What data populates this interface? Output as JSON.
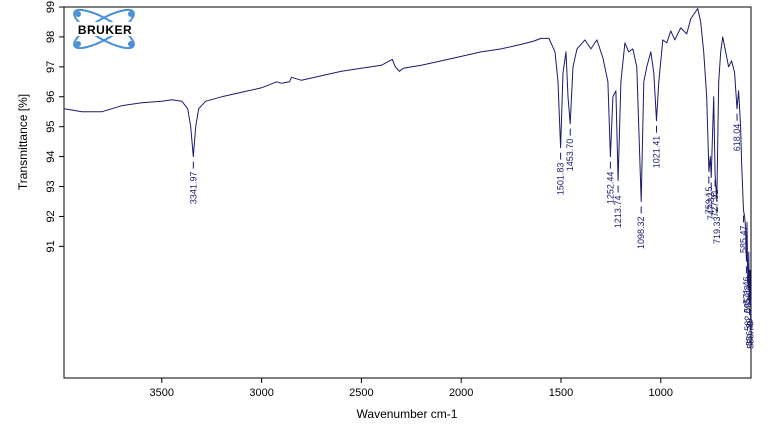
{
  "logo": {
    "text": "BRUKER"
  },
  "colors": {
    "spectrum": "#1a1a6e",
    "axis": "#000000",
    "logo_orbit": "#4a90d9"
  },
  "chart_data": {
    "type": "line",
    "xlabel": "Wavenumber cm-1",
    "ylabel": "Transmittance [%]",
    "x_reversed": true,
    "xlim": [
      3990,
      548
    ],
    "ylim": [
      86.6,
      99
    ],
    "x_ticks": [
      3500,
      3000,
      2500,
      2000,
      1500,
      1000
    ],
    "y_ticks": [
      91,
      92,
      93,
      94,
      95,
      96,
      97,
      98,
      99
    ],
    "grid": false,
    "series": [
      {
        "values": [
          [
            3990,
            95.6
          ],
          [
            3900,
            95.5
          ],
          [
            3800,
            95.5
          ],
          [
            3700,
            95.7
          ],
          [
            3600,
            95.8
          ],
          [
            3500,
            95.85
          ],
          [
            3450,
            95.9
          ],
          [
            3400,
            95.85
          ],
          [
            3370,
            95.6
          ],
          [
            3355,
            95.0
          ],
          [
            3342,
            94.0
          ],
          [
            3330,
            95.0
          ],
          [
            3315,
            95.6
          ],
          [
            3280,
            95.85
          ],
          [
            3200,
            96.0
          ],
          [
            3100,
            96.15
          ],
          [
            3000,
            96.3
          ],
          [
            2925,
            96.5
          ],
          [
            2900,
            96.45
          ],
          [
            2860,
            96.5
          ],
          [
            2850,
            96.65
          ],
          [
            2800,
            96.55
          ],
          [
            2700,
            96.7
          ],
          [
            2600,
            96.85
          ],
          [
            2500,
            96.95
          ],
          [
            2400,
            97.05
          ],
          [
            2360,
            97.2
          ],
          [
            2345,
            97.25
          ],
          [
            2330,
            97.0
          ],
          [
            2310,
            96.85
          ],
          [
            2290,
            96.95
          ],
          [
            2200,
            97.05
          ],
          [
            2100,
            97.2
          ],
          [
            2000,
            97.35
          ],
          [
            1900,
            97.5
          ],
          [
            1800,
            97.6
          ],
          [
            1700,
            97.75
          ],
          [
            1640,
            97.85
          ],
          [
            1620,
            97.9
          ],
          [
            1600,
            97.95
          ],
          [
            1560,
            97.95
          ],
          [
            1530,
            97.5
          ],
          [
            1515,
            96.5
          ],
          [
            1501.83,
            94.3
          ],
          [
            1490,
            96.8
          ],
          [
            1475,
            97.5
          ],
          [
            1465,
            96.0
          ],
          [
            1453.7,
            95.1
          ],
          [
            1440,
            97.0
          ],
          [
            1420,
            97.6
          ],
          [
            1380,
            97.9
          ],
          [
            1350,
            97.6
          ],
          [
            1320,
            97.9
          ],
          [
            1290,
            97.3
          ],
          [
            1265,
            96.5
          ],
          [
            1252.44,
            94.0
          ],
          [
            1240,
            96.0
          ],
          [
            1225,
            96.2
          ],
          [
            1213.74,
            93.2
          ],
          [
            1200,
            96.5
          ],
          [
            1180,
            97.8
          ],
          [
            1160,
            97.5
          ],
          [
            1140,
            97.6
          ],
          [
            1120,
            97.0
          ],
          [
            1098.32,
            92.5
          ],
          [
            1085,
            96.5
          ],
          [
            1070,
            97.0
          ],
          [
            1050,
            97.5
          ],
          [
            1035,
            96.8
          ],
          [
            1021.41,
            95.2
          ],
          [
            1010,
            96.5
          ],
          [
            990,
            97.9
          ],
          [
            970,
            97.8
          ],
          [
            950,
            98.2
          ],
          [
            930,
            97.9
          ],
          [
            900,
            98.3
          ],
          [
            870,
            98.1
          ],
          [
            850,
            98.6
          ],
          [
            830,
            98.8
          ],
          [
            815,
            98.95
          ],
          [
            800,
            98.5
          ],
          [
            785,
            97.5
          ],
          [
            770,
            96.0
          ],
          [
            759.15,
            93.5
          ],
          [
            752,
            94.0
          ],
          [
            747.32,
            93.3
          ],
          [
            735,
            96.0
          ],
          [
            727.91,
            93.4
          ],
          [
            719.33,
            92.5
          ],
          [
            710,
            96.5
          ],
          [
            700,
            97.5
          ],
          [
            690,
            98.0
          ],
          [
            675,
            97.5
          ],
          [
            660,
            97.0
          ],
          [
            645,
            97.2
          ],
          [
            630,
            96.8
          ],
          [
            618.04,
            95.6
          ],
          [
            610,
            96.2
          ],
          [
            600,
            95.0
          ],
          [
            595,
            93.8
          ],
          [
            585.47,
            92.2
          ],
          [
            580,
            92.0
          ],
          [
            575,
            91.6
          ],
          [
            571,
            90.5
          ],
          [
            568,
            91.8
          ],
          [
            565,
            90.2
          ],
          [
            562,
            89.6
          ],
          [
            559,
            90.8
          ],
          [
            556,
            89.1
          ],
          [
            553,
            90.2
          ],
          [
            550,
            89.0
          ],
          [
            548,
            89.2
          ]
        ]
      }
    ],
    "annotations": [
      {
        "label": "3341.97",
        "x": 3341.97,
        "y": 94.0
      },
      {
        "label": "1501.83",
        "x": 1501.83,
        "y": 94.3
      },
      {
        "label": "1453.70",
        "x": 1453.7,
        "y": 95.1
      },
      {
        "label": "1252.44",
        "x": 1252.44,
        "y": 94.0
      },
      {
        "label": "1213.74",
        "x": 1213.74,
        "y": 93.2
      },
      {
        "label": "1098.32",
        "x": 1098.32,
        "y": 92.5
      },
      {
        "label": "1021.41",
        "x": 1021.41,
        "y": 95.2
      },
      {
        "label": "759.15",
        "x": 759.15,
        "y": 93.5
      },
      {
        "label": "747.32",
        "x": 747.32,
        "y": 93.3
      },
      {
        "label": "727.91",
        "x": 727.91,
        "y": 93.4
      },
      {
        "label": "719.33",
        "x": 719.33,
        "y": 92.5
      },
      {
        "label": "618.04",
        "x": 618.04,
        "y": 95.6
      },
      {
        "label": "585.47",
        "x": 585.47,
        "y": 92.2
      },
      {
        "label": "571.46",
        "x": 571.0,
        "y": 90.5
      },
      {
        "label": "565.88",
        "x": 565.0,
        "y": 90.2
      },
      {
        "label": "562.09",
        "x": 562.0,
        "y": 89.6
      },
      {
        "label": "556.29",
        "x": 556.0,
        "y": 89.1
      },
      {
        "label": "550.76",
        "x": 550.0,
        "y": 89.0
      }
    ]
  }
}
